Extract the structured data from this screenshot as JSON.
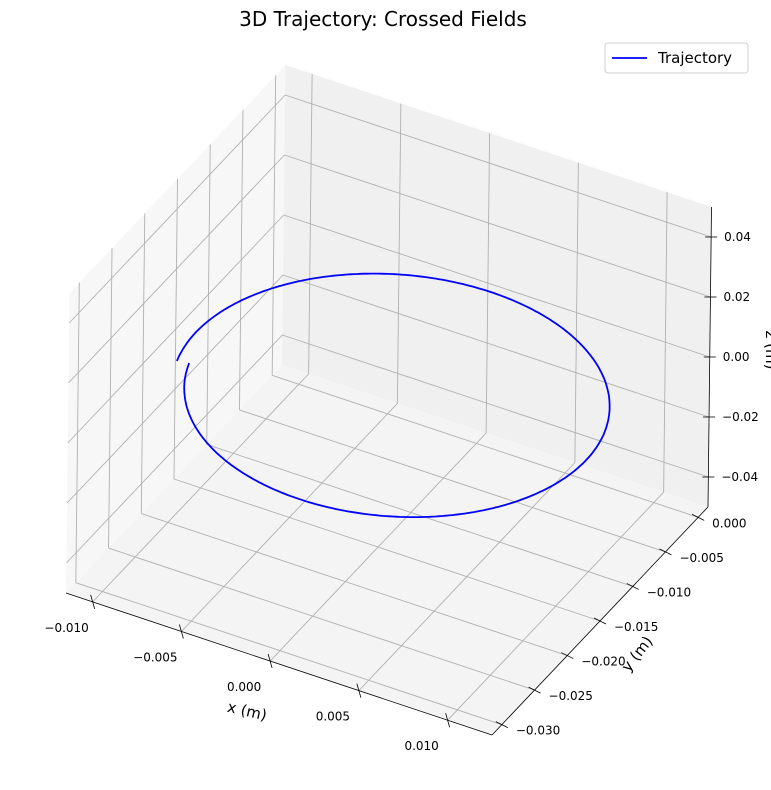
{
  "chart_data": {
    "type": "line3d",
    "title": "3D Trajectory: Crossed Fields",
    "xlabel": "x (m)",
    "ylabel": "y (m)",
    "zlabel": "z (m)",
    "xlim": [
      -0.0115,
      0.0125
    ],
    "ylim": [
      -0.0315,
      0.0015
    ],
    "zlim": [
      -0.05,
      0.05
    ],
    "xticks": [
      -0.01,
      -0.005,
      0.0,
      0.005,
      0.01
    ],
    "xtick_labels": [
      "−0.010",
      "−0.005",
      "0.000",
      "0.005",
      "0.010"
    ],
    "yticks": [
      0.0,
      -0.005,
      -0.01,
      -0.015,
      -0.02,
      -0.025,
      -0.03
    ],
    "ytick_labels": [
      "0.000",
      "−0.005",
      "−0.010",
      "−0.015",
      "−0.020",
      "−0.025",
      "−0.030"
    ],
    "zticks": [
      0.04,
      0.02,
      0.0,
      -0.02,
      -0.04
    ],
    "ztick_labels": [
      "0.04",
      "0.02",
      "0.00",
      "−0.02",
      "−0.04"
    ],
    "grid": true,
    "legend_position": "top-right",
    "series": [
      {
        "name": "Trajectory",
        "color": "#0000ff",
        "z": 0.0,
        "path": {
          "center_x": 0.0006,
          "center_y": -0.0145,
          "radius_x": 0.0105,
          "radius_y": 0.0145,
          "start_angle_deg": 195,
          "end_angle_deg": 555,
          "radius_growth": 0.06
        }
      }
    ]
  }
}
